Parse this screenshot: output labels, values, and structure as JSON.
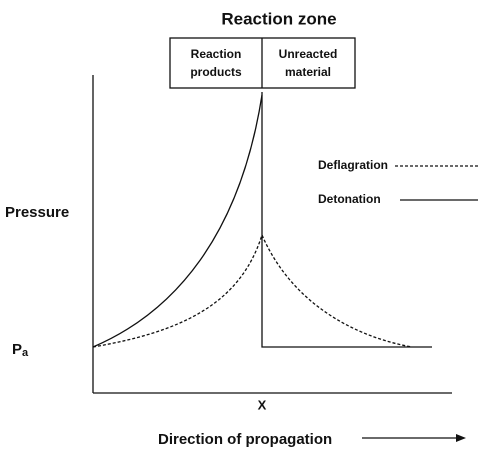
{
  "header": {
    "title": "Reaction zone"
  },
  "zone_boxes": [
    {
      "lines": [
        "Reaction",
        "products"
      ]
    },
    {
      "lines": [
        "Unreacted",
        "material"
      ]
    }
  ],
  "legend": [
    {
      "label": "Deflagration"
    },
    {
      "label": "Detonation"
    }
  ],
  "y_axis_label": "Pressure",
  "pa_label": {
    "main": "P",
    "sub": "a"
  },
  "x_marker": "X",
  "x_axis_label": "Direction of propagation"
}
